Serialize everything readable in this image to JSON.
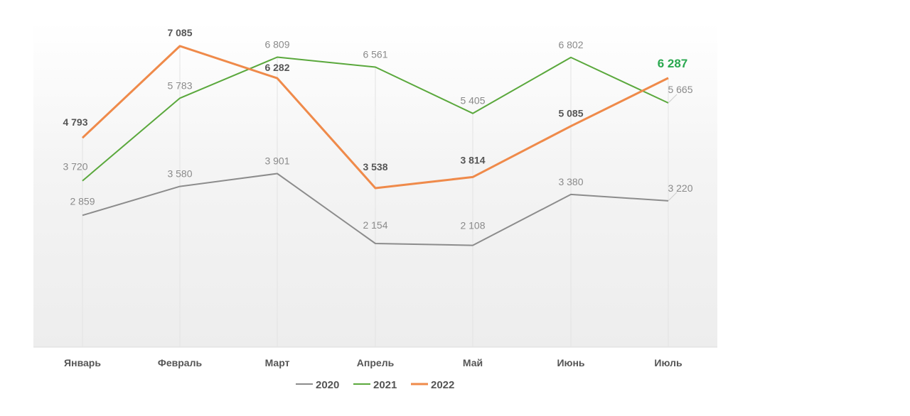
{
  "chart_data": {
    "type": "line",
    "categories": [
      "Январь",
      "Февраль",
      "Март",
      "Апрель",
      "Май",
      "Июнь",
      "Июль"
    ],
    "series": [
      {
        "name": "2020",
        "color": "#8c8c8c",
        "values": [
          2859,
          3580,
          3901,
          2154,
          2108,
          3380,
          3220
        ],
        "labels": [
          "2 859",
          "3 580",
          "3 901",
          "2 154",
          "2 108",
          "3 380",
          "3 220"
        ]
      },
      {
        "name": "2021",
        "color": "#5aa83c",
        "values": [
          3720,
          5783,
          6809,
          6561,
          5405,
          6802,
          5665
        ],
        "labels": [
          "3 720",
          "5 783",
          "6 809",
          "6 561",
          "5 405",
          "6 802",
          "5 665"
        ]
      },
      {
        "name": "2022",
        "color": "#ef8a4a",
        "values": [
          4793,
          7085,
          6282,
          3538,
          3814,
          5085,
          6287
        ],
        "labels": [
          "4 793",
          "7 085",
          "6 282",
          "3 538",
          "3 814",
          "5 085",
          "6 287"
        ]
      }
    ],
    "highlight": {
      "series": "2022",
      "index": 6,
      "color": "#2aa84f"
    },
    "grid": "vertical",
    "legend": "bottom-center",
    "title": "",
    "xlabel": "",
    "ylabel": ""
  }
}
